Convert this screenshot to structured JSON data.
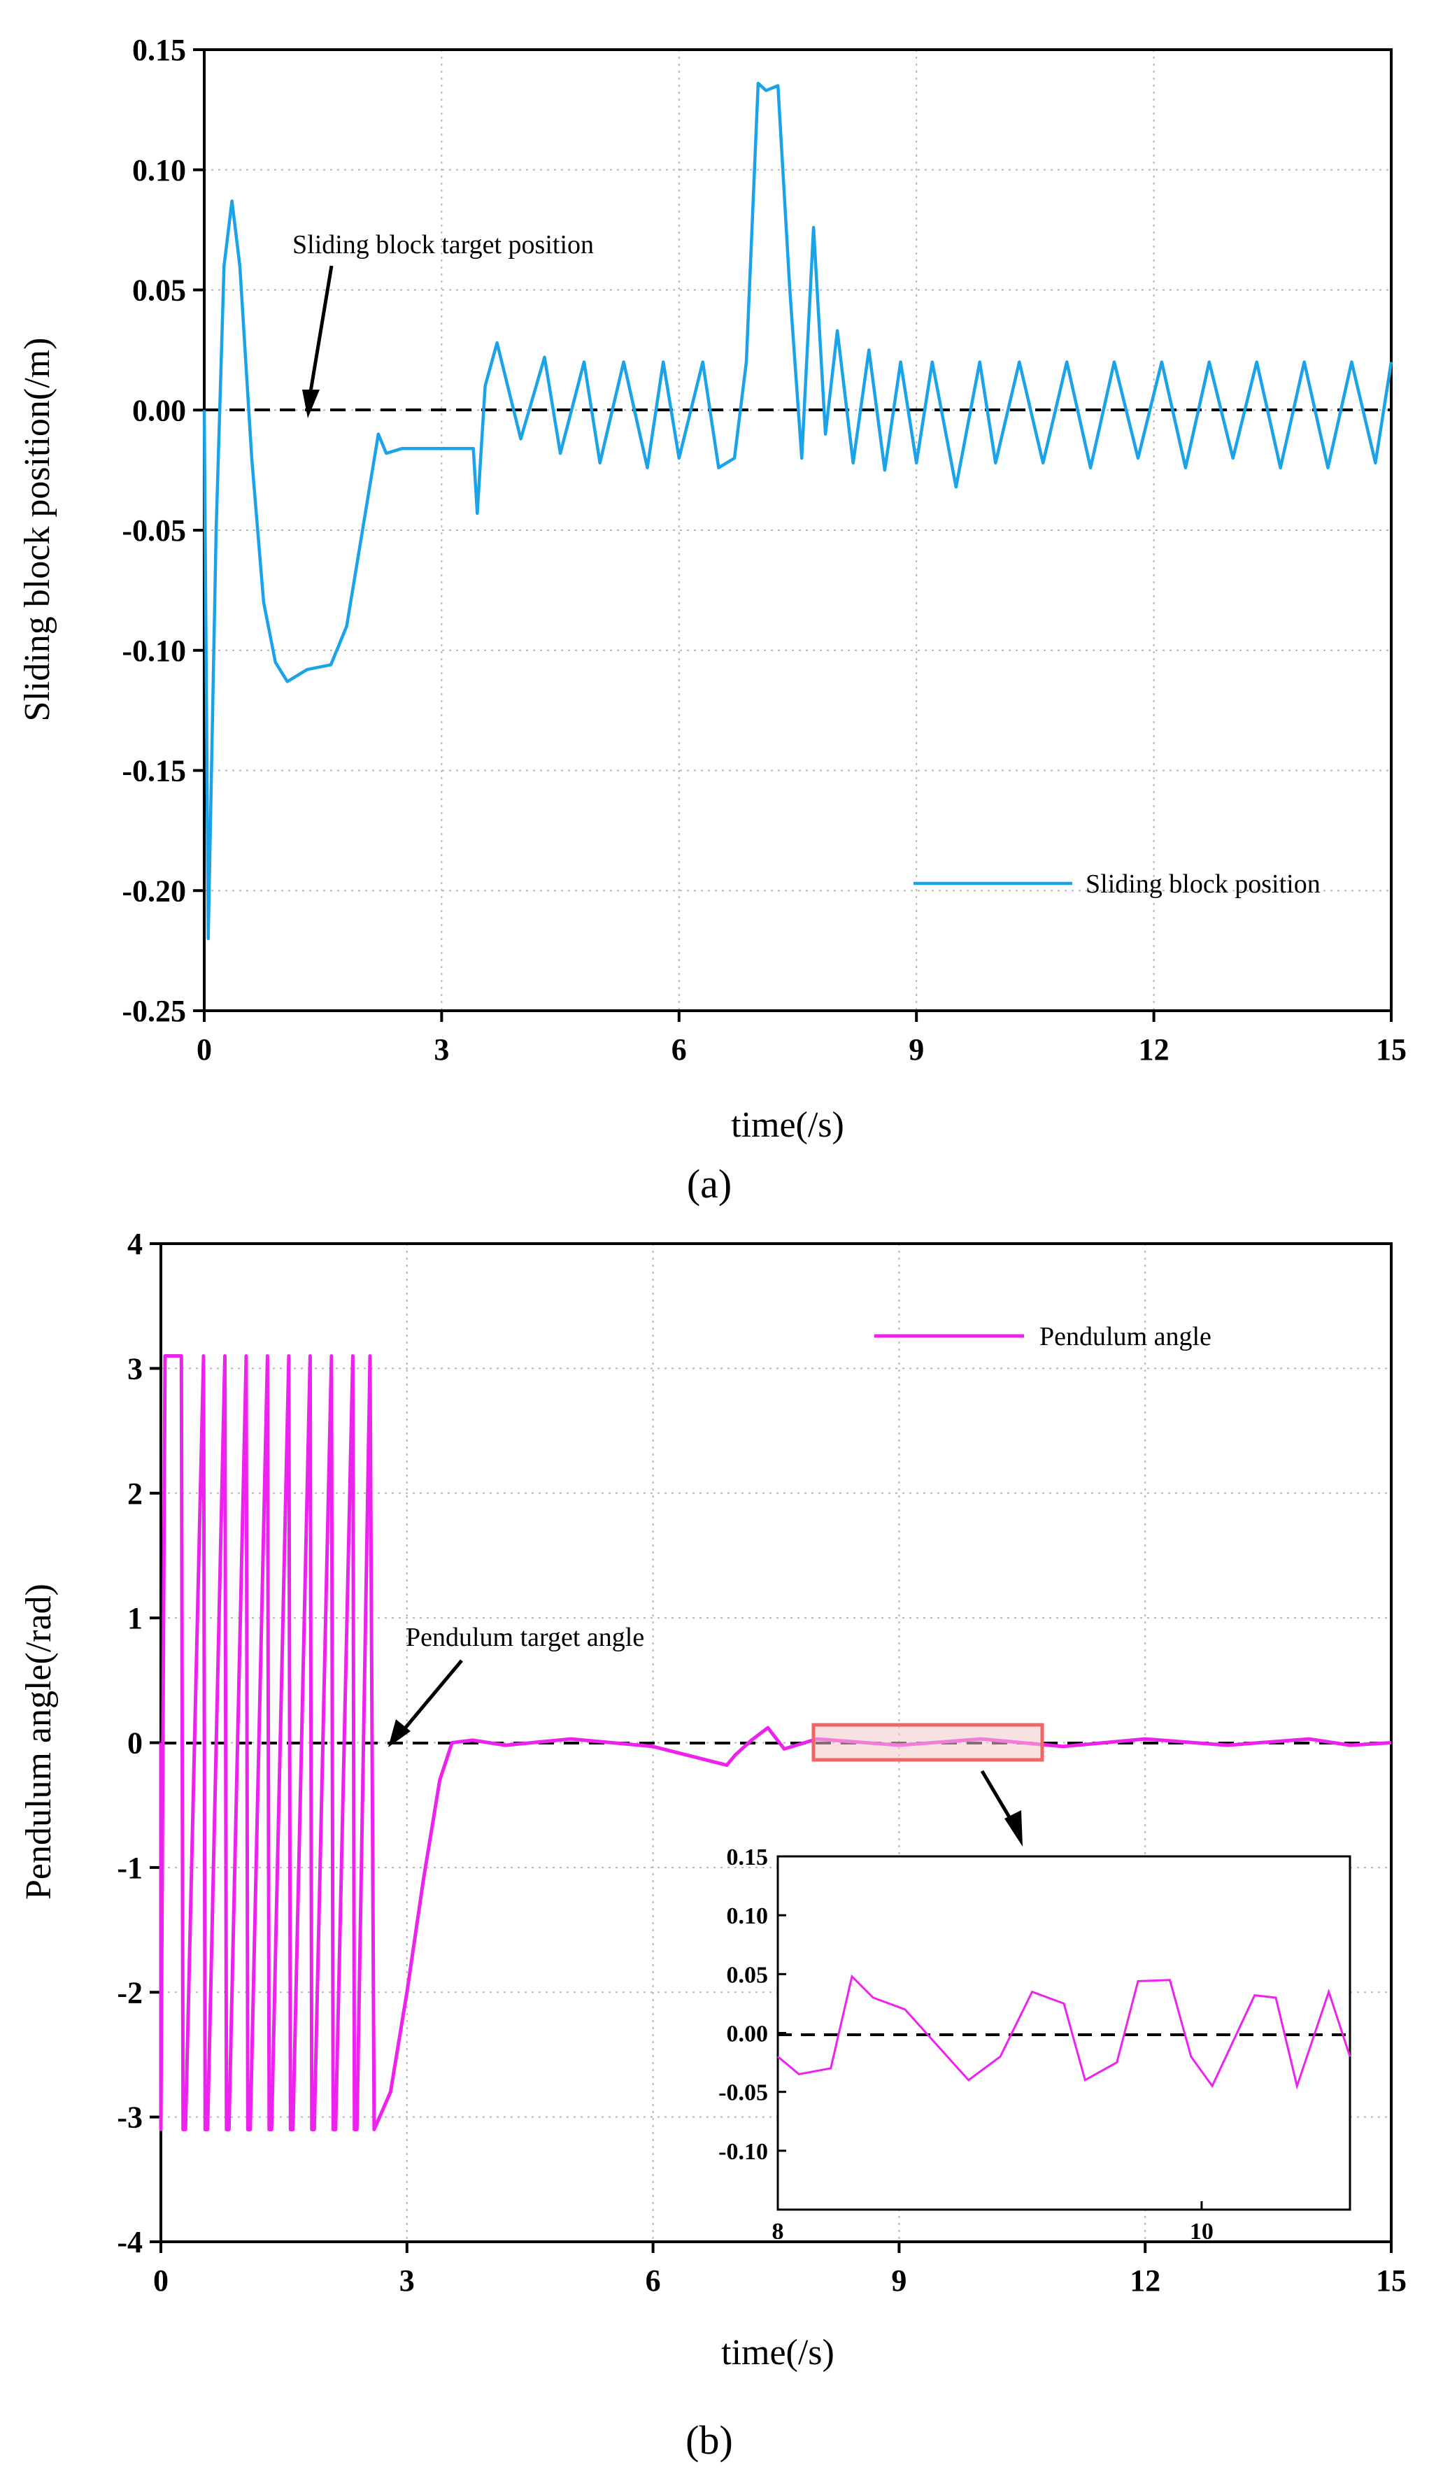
{
  "chart_data": [
    {
      "type": "line",
      "panel_label": "(a)",
      "xlabel": "time(/s)",
      "ylabel": "Sliding block position(/m)",
      "xlim": [
        0,
        15
      ],
      "ylim": [
        -0.25,
        0.15
      ],
      "xticks": [
        "0",
        "3",
        "6",
        "9",
        "12",
        "15"
      ],
      "yticks": [
        "0.15",
        "0.10",
        "0.05",
        "0.00",
        "-0.05",
        "-0.10",
        "-0.15",
        "-0.20",
        "-0.25"
      ],
      "grid": true,
      "legend_position": "bottom-right",
      "annotation": "Sliding block target position",
      "reference_line": {
        "y": 0,
        "style": "dashed"
      },
      "series": [
        {
          "name": "Sliding block position",
          "color": "#1aa3e8",
          "x": [
            0,
            0.05,
            0.15,
            0.25,
            0.35,
            0.45,
            0.6,
            0.75,
            0.9,
            1.05,
            1.3,
            1.6,
            1.8,
            1.95,
            2.1,
            2.2,
            2.3,
            2.5,
            3.0,
            3.4,
            3.45,
            3.55,
            3.7,
            4.0,
            4.3,
            4.5,
            4.8,
            5.0,
            5.3,
            5.6,
            5.8,
            6.0,
            6.3,
            6.5,
            6.7,
            6.85,
            7.0,
            7.1,
            7.25,
            7.4,
            7.55,
            7.7,
            7.85,
            8.0,
            8.2,
            8.4,
            8.6,
            8.8,
            9.0,
            9.2,
            9.5,
            9.8,
            10.0,
            10.3,
            10.6,
            10.9,
            11.2,
            11.5,
            11.8,
            12.1,
            12.4,
            12.7,
            13.0,
            13.3,
            13.6,
            13.9,
            14.2,
            14.5,
            14.8,
            15.0
          ],
          "values": [
            0,
            -0.22,
            -0.05,
            0.06,
            0.087,
            0.06,
            -0.02,
            -0.08,
            -0.105,
            -0.113,
            -0.108,
            -0.106,
            -0.09,
            -0.06,
            -0.03,
            -0.01,
            -0.018,
            -0.016,
            -0.016,
            -0.016,
            -0.043,
            0.01,
            0.028,
            -0.012,
            0.022,
            -0.018,
            0.02,
            -0.022,
            0.02,
            -0.024,
            0.02,
            -0.02,
            0.02,
            -0.024,
            -0.02,
            0.02,
            0.136,
            0.133,
            0.135,
            0.05,
            -0.02,
            0.076,
            -0.01,
            0.033,
            -0.022,
            0.025,
            -0.025,
            0.02,
            -0.022,
            0.02,
            -0.032,
            0.02,
            -0.022,
            0.02,
            -0.022,
            0.02,
            -0.024,
            0.02,
            -0.02,
            0.02,
            -0.024,
            0.02,
            -0.02,
            0.02,
            -0.024,
            0.02,
            -0.024,
            0.02,
            -0.022,
            0.02
          ]
        }
      ]
    },
    {
      "type": "line",
      "panel_label": "(b)",
      "xlabel": "time(/s)",
      "ylabel": "Pendulum angle(/rad)",
      "xlim": [
        0,
        15
      ],
      "ylim": [
        -4,
        4
      ],
      "xticks": [
        "0",
        "3",
        "6",
        "9",
        "12",
        "15"
      ],
      "yticks": [
        "4",
        "3",
        "2",
        "1",
        "0",
        "-1",
        "-2",
        "-3",
        "-4"
      ],
      "grid": true,
      "legend_position": "top-right",
      "annotation": "Pendulum target angle",
      "reference_line": {
        "y": 0,
        "style": "dashed"
      },
      "series": [
        {
          "name": "Pendulum angle",
          "color": "#ee22ee",
          "x": [
            0,
            0.0,
            0.05,
            0.25,
            0.27,
            0.3,
            0.52,
            0.54,
            0.57,
            0.78,
            0.8,
            0.83,
            1.04,
            1.06,
            1.09,
            1.3,
            1.32,
            1.35,
            1.56,
            1.58,
            1.61,
            1.82,
            1.84,
            1.87,
            2.08,
            2.1,
            2.13,
            2.34,
            2.36,
            2.39,
            2.55,
            2.6,
            2.8,
            3.0,
            3.2,
            3.4,
            3.55,
            3.8,
            4.2,
            5.0,
            6.0,
            6.9,
            7.0,
            7.2,
            7.4,
            7.6,
            8.0,
            9.0,
            10.0,
            11.0,
            12.0,
            13.0,
            14.0,
            14.5,
            15.0
          ],
          "values": [
            0,
            -3.1,
            3.1,
            3.1,
            -3.1,
            -3.1,
            3.1,
            -3.1,
            -3.1,
            3.1,
            -3.1,
            -3.1,
            3.1,
            -3.1,
            -3.1,
            3.1,
            -3.1,
            -3.1,
            3.1,
            -3.1,
            -3.1,
            3.1,
            -3.1,
            -3.1,
            3.1,
            -3.1,
            -3.1,
            3.1,
            -3.1,
            -3.1,
            3.1,
            -3.1,
            -2.8,
            -2.0,
            -1.1,
            -0.3,
            0.0,
            0.02,
            -0.02,
            0.03,
            -0.03,
            -0.18,
            -0.1,
            0.02,
            0.12,
            -0.05,
            0.03,
            -0.02,
            0.03,
            -0.03,
            0.03,
            -0.02,
            0.03,
            -0.02,
            0.0
          ]
        }
      ],
      "inset": {
        "xlim": [
          8,
          10.7
        ],
        "ylim": [
          -0.15,
          0.15
        ],
        "xticks": [
          "8",
          "10"
        ],
        "yticks": [
          "0.15",
          "0.10",
          "0.05",
          "0.00",
          "-0.05",
          "-0.10"
        ],
        "x": [
          8.0,
          8.1,
          8.25,
          8.35,
          8.45,
          8.6,
          8.75,
          8.85,
          8.9,
          9.05,
          9.2,
          9.35,
          9.45,
          9.6,
          9.7,
          9.85,
          9.95,
          10.05,
          10.25,
          10.35,
          10.45,
          10.6,
          10.7
        ],
        "values": [
          -0.02,
          -0.035,
          -0.03,
          0.048,
          0.03,
          0.02,
          -0.01,
          -0.03,
          -0.04,
          -0.02,
          0.035,
          0.025,
          -0.04,
          -0.025,
          0.044,
          0.045,
          -0.02,
          -0.045,
          0.032,
          0.03,
          -0.045,
          0.035,
          -0.02
        ]
      }
    }
  ]
}
